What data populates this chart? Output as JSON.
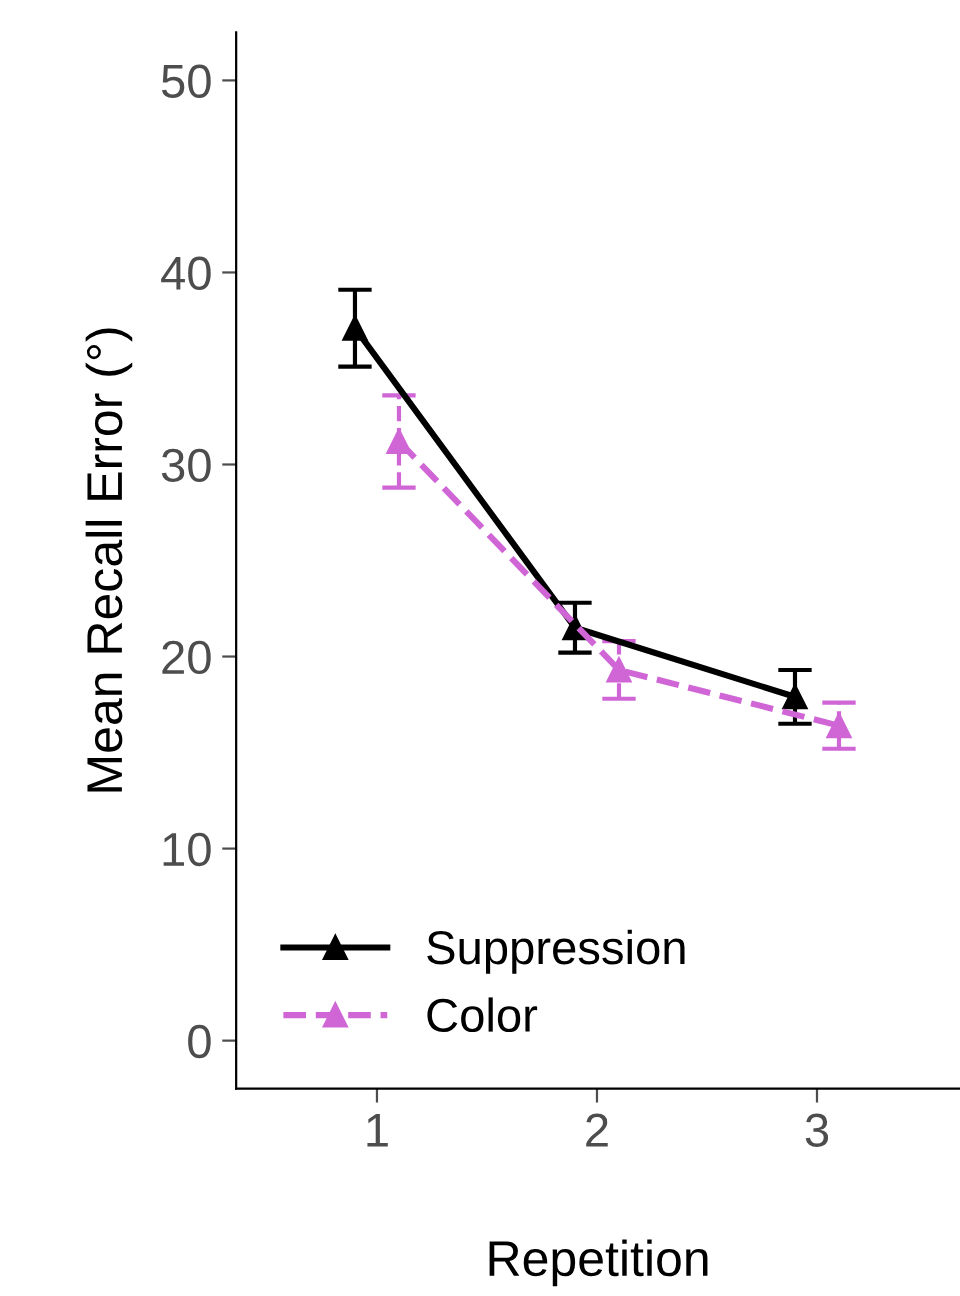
{
  "chart_data": {
    "type": "line",
    "xlabel": "Repetition",
    "ylabel": "Mean Recall Error (°)",
    "categories": [
      "1",
      "2",
      "3"
    ],
    "ylim": [
      -2.5,
      52.5
    ],
    "yticks": [
      0,
      10,
      20,
      30,
      40,
      50
    ],
    "grid": false,
    "legend": "bottom left",
    "marker": "triangle",
    "series": [
      {
        "name": "Suppression",
        "color": "#000000",
        "line_style": "solid",
        "values": [
          37.1,
          21.5,
          17.9
        ],
        "errors": [
          2.0,
          1.3,
          1.4
        ]
      },
      {
        "name": "Color",
        "color": "#d066d6",
        "line_style": "dashed",
        "values": [
          31.2,
          19.3,
          16.4
        ],
        "errors": [
          2.4,
          1.5,
          1.2
        ]
      }
    ]
  }
}
